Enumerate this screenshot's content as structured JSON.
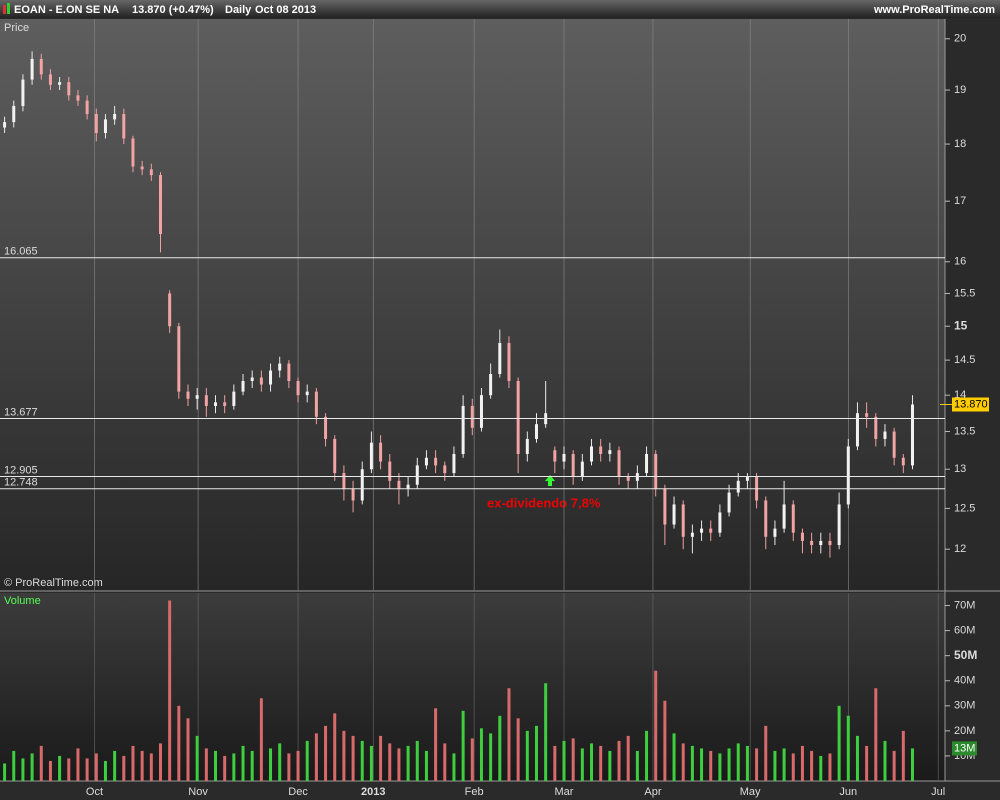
{
  "header": {
    "symbol": "EOAN - E.ON SE NA",
    "quote": "13.870 (+0.47%)",
    "period": "Daily",
    "date": "Oct 08 2013",
    "site": "www.ProRealTime.com",
    "copyright": "© ProRealTime.com"
  },
  "chart_data": [
    {
      "type": "candlestick",
      "title": "Price",
      "log_scale": true,
      "ylim": [
        11.52,
        20.4
      ],
      "xlim": [
        -0.5,
        102
      ],
      "yticks": [
        12,
        12.5,
        13,
        13.5,
        14,
        14.5,
        15,
        15.5,
        16,
        17,
        18,
        19,
        20
      ],
      "levels": [
        16.065,
        13.677,
        12.905,
        12.748
      ],
      "last_price": {
        "value": 13.87,
        "label": "13.870"
      },
      "annotation": "ex-dividendo 7,8%",
      "x": [
        0,
        1,
        2,
        3,
        4,
        5,
        6,
        7,
        8,
        9,
        10,
        11,
        12,
        13,
        14,
        15,
        16,
        17,
        18,
        19,
        20,
        21,
        22,
        23,
        24,
        25,
        26,
        27,
        28,
        29,
        30,
        31,
        32,
        33,
        34,
        35,
        36,
        37,
        38,
        39,
        40,
        41,
        42,
        43,
        44,
        45,
        46,
        47,
        48,
        49,
        50,
        51,
        52,
        53,
        54,
        55,
        56,
        57,
        58,
        59,
        60,
        61,
        62,
        63,
        64,
        65,
        66,
        67,
        68,
        69,
        70,
        71,
        72,
        73,
        74,
        75,
        76,
        77,
        78,
        79,
        80,
        81,
        82,
        83,
        84,
        85,
        86,
        87,
        88,
        89,
        90,
        91,
        92,
        93,
        94,
        95,
        96,
        97,
        98,
        99
      ],
      "open": [
        18.3,
        18.4,
        18.7,
        19.2,
        19.6,
        19.3,
        19.1,
        19.15,
        18.9,
        18.8,
        18.55,
        18.2,
        18.45,
        18.55,
        18.1,
        17.6,
        17.55,
        17.45,
        15.5,
        15.0,
        14.05,
        13.95,
        14.0,
        13.85,
        13.9,
        13.85,
        14.05,
        14.2,
        14.25,
        14.15,
        14.35,
        14.45,
        14.2,
        14.0,
        14.05,
        13.7,
        13.4,
        12.95,
        12.75,
        12.6,
        13.0,
        13.35,
        13.1,
        12.85,
        12.75,
        12.8,
        13.05,
        13.15,
        13.05,
        12.95,
        13.2,
        13.85,
        13.55,
        14.0,
        14.3,
        14.75,
        14.2,
        13.2,
        13.4,
        13.6,
        13.25,
        13.1,
        13.2,
        12.9,
        13.1,
        13.3,
        13.2,
        13.25,
        12.9,
        12.85,
        12.95,
        13.2,
        12.75,
        12.3,
        12.55,
        12.15,
        12.2,
        12.25,
        12.2,
        12.45,
        12.7,
        12.85,
        12.9,
        12.6,
        12.15,
        12.25,
        12.55,
        12.2,
        12.1,
        12.05,
        12.1,
        12.05,
        12.55,
        13.3,
        13.75,
        13.7,
        13.4,
        13.5,
        13.15,
        13.05
      ],
      "high": [
        18.5,
        18.8,
        19.3,
        19.75,
        19.7,
        19.4,
        19.25,
        19.25,
        19.0,
        18.9,
        18.65,
        18.55,
        18.7,
        18.65,
        18.15,
        17.7,
        17.65,
        17.5,
        15.55,
        15.05,
        14.15,
        14.1,
        14.1,
        14.0,
        14.0,
        14.15,
        14.3,
        14.35,
        14.35,
        14.45,
        14.55,
        14.5,
        14.25,
        14.15,
        14.1,
        13.75,
        13.45,
        13.05,
        12.85,
        13.1,
        13.5,
        13.45,
        13.2,
        12.95,
        12.9,
        13.15,
        13.25,
        13.25,
        13.1,
        13.3,
        14.0,
        13.95,
        14.1,
        14.45,
        14.95,
        14.85,
        14.25,
        13.5,
        13.75,
        14.2,
        13.3,
        13.3,
        13.25,
        13.2,
        13.4,
        13.4,
        13.35,
        13.3,
        12.95,
        13.05,
        13.3,
        13.25,
        12.8,
        12.65,
        12.6,
        12.3,
        12.35,
        12.35,
        12.55,
        12.8,
        12.95,
        12.95,
        12.95,
        12.65,
        12.35,
        12.85,
        12.6,
        12.25,
        12.2,
        12.2,
        12.2,
        12.7,
        13.4,
        13.9,
        13.9,
        13.75,
        13.6,
        13.55,
        13.2,
        14.0
      ],
      "low": [
        18.2,
        18.3,
        18.6,
        19.1,
        19.2,
        19.0,
        19.0,
        18.8,
        18.7,
        18.45,
        18.05,
        18.1,
        18.35,
        18.0,
        17.5,
        17.45,
        17.35,
        16.15,
        14.9,
        13.95,
        13.85,
        13.8,
        13.7,
        13.75,
        13.75,
        13.8,
        14.0,
        14.1,
        14.05,
        14.05,
        14.25,
        14.1,
        13.9,
        13.9,
        13.6,
        13.3,
        12.85,
        12.6,
        12.45,
        12.55,
        12.95,
        13.0,
        12.75,
        12.55,
        12.65,
        12.75,
        13.0,
        12.95,
        12.85,
        12.9,
        13.15,
        13.45,
        13.5,
        13.95,
        14.25,
        14.1,
        12.95,
        13.1,
        13.35,
        13.55,
        12.95,
        13.0,
        12.8,
        12.85,
        13.05,
        13.1,
        13.1,
        12.8,
        12.75,
        12.75,
        12.9,
        12.65,
        12.05,
        12.25,
        12.0,
        11.95,
        12.1,
        12.1,
        12.15,
        12.4,
        12.65,
        12.75,
        12.5,
        12.0,
        12.05,
        12.2,
        12.1,
        11.95,
        11.95,
        11.95,
        11.9,
        12.0,
        12.5,
        13.25,
        13.55,
        13.3,
        13.3,
        13.05,
        12.95,
        13.0
      ],
      "close": [
        18.4,
        18.7,
        19.2,
        19.6,
        19.3,
        19.1,
        19.15,
        18.9,
        18.8,
        18.55,
        18.2,
        18.45,
        18.55,
        18.1,
        17.6,
        17.55,
        17.45,
        16.45,
        15.0,
        14.05,
        13.95,
        14.0,
        13.85,
        13.9,
        13.85,
        14.05,
        14.2,
        14.25,
        14.15,
        14.35,
        14.45,
        14.2,
        14.0,
        14.05,
        13.7,
        13.4,
        12.95,
        12.75,
        12.6,
        13.0,
        13.35,
        13.1,
        12.85,
        12.75,
        12.8,
        13.05,
        13.15,
        13.05,
        12.95,
        13.2,
        13.85,
        13.55,
        14.0,
        14.3,
        14.75,
        14.2,
        13.2,
        13.4,
        13.6,
        13.75,
        13.1,
        13.2,
        12.9,
        13.1,
        13.3,
        13.2,
        13.25,
        12.9,
        12.85,
        12.95,
        13.2,
        12.75,
        12.3,
        12.55,
        12.15,
        12.2,
        12.25,
        12.2,
        12.45,
        12.7,
        12.85,
        12.9,
        12.6,
        12.15,
        12.25,
        12.55,
        12.2,
        12.1,
        12.05,
        12.1,
        12.05,
        12.55,
        13.3,
        13.75,
        13.7,
        13.4,
        13.5,
        13.15,
        13.05,
        13.87
      ],
      "up_color": "#f2f2f2",
      "down_color": "#f2a3a3"
    },
    {
      "type": "bar",
      "title": "Volume",
      "ylim": [
        0,
        75
      ],
      "xlim": [
        -0.5,
        102
      ],
      "yticks": [
        {
          "value": 10,
          "label": "10M"
        },
        {
          "value": 20,
          "label": "20M"
        },
        {
          "value": 30,
          "label": "30M"
        },
        {
          "value": 40,
          "label": "40M"
        },
        {
          "value": 50,
          "label": "50M"
        },
        {
          "value": 60,
          "label": "60M"
        },
        {
          "value": 70,
          "label": "70M"
        }
      ],
      "last_volume": {
        "value": 13,
        "label": "13M"
      },
      "xticks": [
        {
          "value": 9.8,
          "label": "Oct"
        },
        {
          "value": 21.1,
          "label": "Nov"
        },
        {
          "value": 32,
          "label": "Dec"
        },
        {
          "value": 40.2,
          "label": "2013"
        },
        {
          "value": 51.2,
          "label": "Feb"
        },
        {
          "value": 61,
          "label": "Mar"
        },
        {
          "value": 70.7,
          "label": "Apr"
        },
        {
          "value": 81.3,
          "label": "May"
        },
        {
          "value": 92,
          "label": "Jun"
        },
        {
          "value": 101.8,
          "label": "Jul"
        }
      ],
      "values": [
        7,
        12,
        9,
        11,
        14,
        8,
        10,
        9,
        13,
        9,
        11,
        8,
        12,
        10,
        14,
        12,
        11,
        15,
        72,
        30,
        25,
        18,
        13,
        12,
        10,
        11,
        14,
        12,
        33,
        13,
        15,
        11,
        12,
        16,
        19,
        22,
        27,
        20,
        18,
        16,
        14,
        18,
        15,
        13,
        14,
        16,
        12,
        29,
        15,
        11,
        28,
        17,
        21,
        19,
        26,
        37,
        25,
        20,
        22,
        39,
        14,
        16,
        17,
        13,
        15,
        14,
        12,
        16,
        18,
        12,
        20,
        44,
        32,
        19,
        15,
        14,
        13,
        12,
        11,
        13,
        15,
        14,
        13,
        22,
        12,
        13,
        11,
        14,
        12,
        10,
        11,
        30,
        26,
        18,
        14,
        37,
        16,
        12,
        20,
        13
      ],
      "up_color": "#3ecf3e",
      "down_color": "#d86a6a"
    }
  ]
}
